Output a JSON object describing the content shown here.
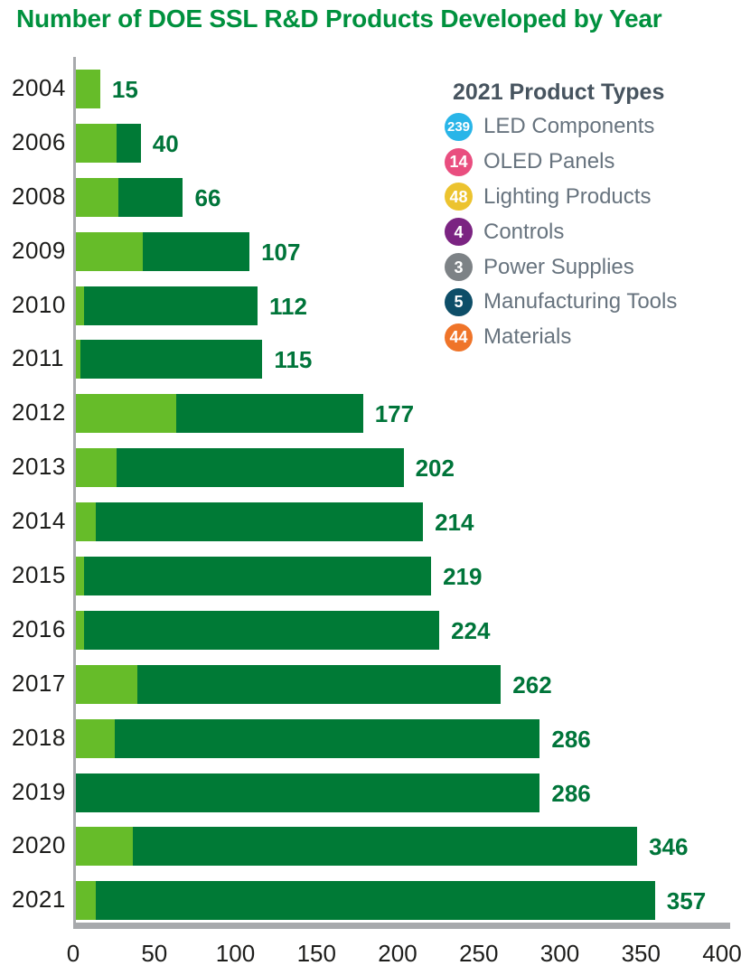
{
  "chart_data": {
    "type": "bar",
    "orientation": "horizontal",
    "stacked": true,
    "title": "Number of DOE SSL R&D Products Developed by Year",
    "categories": [
      "2004",
      "2006",
      "2008",
      "2009",
      "2010",
      "2011",
      "2012",
      "2013",
      "2014",
      "2015",
      "2016",
      "2017",
      "2018",
      "2019",
      "2020",
      "2021"
    ],
    "series": [
      {
        "name": "segment_light",
        "color": "#66bc29",
        "values": [
          15,
          25,
          26,
          41,
          5,
          3,
          62,
          25,
          12,
          5,
          5,
          38,
          24,
          0,
          35,
          12
        ]
      },
      {
        "name": "segment_dark",
        "color": "#007a36",
        "values": [
          0,
          15,
          40,
          66,
          107,
          112,
          115,
          177,
          202,
          214,
          219,
          224,
          262,
          286,
          311,
          345
        ]
      }
    ],
    "totals": [
      15,
      40,
      66,
      107,
      112,
      115,
      177,
      202,
      214,
      219,
      224,
      262,
      286,
      286,
      346,
      357
    ],
    "xlabel": "",
    "ylabel": "",
    "xlim": [
      0,
      400
    ],
    "xticks": [
      0,
      50,
      100,
      150,
      200,
      250,
      300,
      350,
      400
    ],
    "grid": false,
    "value_labels": true,
    "legend_position": "upper right"
  },
  "legend": {
    "title": "2021 Product Types",
    "items": [
      {
        "count": "239",
        "label": "LED Components",
        "color": "#29b5e8"
      },
      {
        "count": "14",
        "label": "OLED Panels",
        "color": "#e94e7f"
      },
      {
        "count": "48",
        "label": "Lighting Products",
        "color": "#ecc32f"
      },
      {
        "count": "4",
        "label": "Controls",
        "color": "#7b2482"
      },
      {
        "count": "3",
        "label": "Power Supplies",
        "color": "#7d8286"
      },
      {
        "count": "5",
        "label": "Manufacturing Tools",
        "color": "#0e4e68"
      },
      {
        "count": "44",
        "label": "Materials",
        "color": "#ef7429"
      }
    ]
  },
  "colors": {
    "title_green": "#00913e",
    "value_green": "#00753a",
    "bar_light_green": "#66bc29",
    "bar_dark_green": "#007a36",
    "axis_gray": "#a7a9ac",
    "text_dark": "#1d1d1b",
    "legend_title": "#47545f",
    "legend_label": "#67737e"
  }
}
